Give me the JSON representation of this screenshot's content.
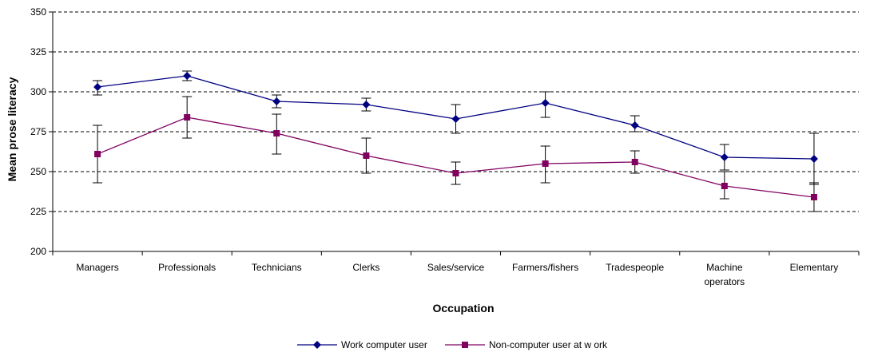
{
  "chart_data": {
    "type": "line",
    "categories": [
      "Managers",
      "Professionals",
      "Technicians",
      "Clerks",
      "Sales/service",
      "Farmers/fishers",
      "Tradespeople",
      "Machine operators",
      "Elementary"
    ],
    "category_lines": [
      [
        "Managers"
      ],
      [
        "Professionals"
      ],
      [
        "Technicians"
      ],
      [
        "Clerks"
      ],
      [
        "Sales/service"
      ],
      [
        "Farmers/fishers"
      ],
      [
        "Tradespeople"
      ],
      [
        "Machine",
        "operators"
      ],
      [
        "Elementary"
      ]
    ],
    "xlabel": "Occupation",
    "ylabel": "Mean prose literacy",
    "ylim": [
      200,
      350
    ],
    "yticks": [
      200,
      225,
      250,
      275,
      300,
      325,
      350
    ],
    "grid": true,
    "legend_position": "bottom",
    "series": [
      {
        "name": "Work computer user",
        "color": "#000080",
        "marker": "diamond",
        "values": [
          303,
          310,
          294,
          292,
          283,
          293,
          279,
          259,
          258
        ],
        "error_low": [
          298,
          307,
          290,
          288,
          274,
          284,
          275,
          251,
          242
        ],
        "error_high": [
          307,
          313,
          298,
          296,
          292,
          300,
          285,
          267,
          274
        ]
      },
      {
        "name": "Non-computer user at w ork",
        "color": "#800060",
        "marker": "square",
        "values": [
          261,
          284,
          274,
          260,
          249,
          255,
          256,
          241,
          234
        ],
        "error_low": [
          243,
          271,
          261,
          249,
          242,
          243,
          249,
          233,
          225
        ],
        "error_high": [
          279,
          297,
          286,
          271,
          256,
          266,
          263,
          250,
          243
        ]
      }
    ]
  }
}
